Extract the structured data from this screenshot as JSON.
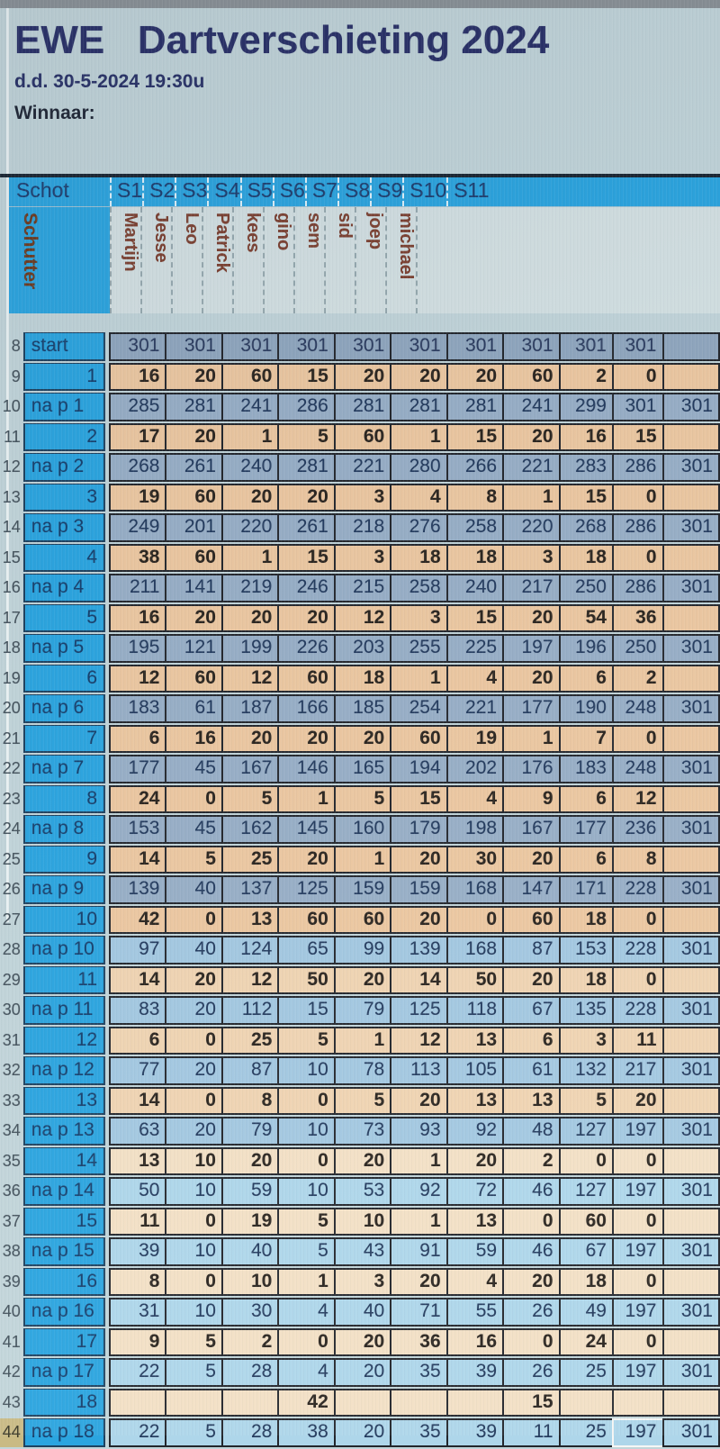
{
  "header": {
    "title": "EWE   Dartverschieting 2024",
    "date_line": "d.d. 30-5-2024 19:30u",
    "winner_label": "Winnaar:"
  },
  "colors": {
    "header_blue": "#2ba5e0",
    "score_row_peach": "#edc8a1",
    "remaining_row_blue": "#98afc7",
    "start_row_slate": "#90a7bf",
    "title_navy": "#272e66",
    "player_name_maroon": "#7d4030",
    "active_gutter_tan": "#c9ba84"
  },
  "table": {
    "corner_label": "Schot",
    "corner_sublabel": "Schutter",
    "shooter_columns": [
      "S1",
      "S2",
      "S3",
      "S4",
      "S5",
      "S6",
      "S7",
      "S8",
      "S9",
      "S10",
      "S11"
    ],
    "players": [
      "Martijn",
      "Jesse",
      "Leo",
      "Patrick",
      "kees",
      "gino",
      "sem",
      "sid",
      "joep",
      "michael",
      ""
    ],
    "selection": {
      "row_index": 36,
      "col_index": 9
    },
    "rows": [
      {
        "num": "8",
        "label": "start",
        "type": "start",
        "values": [
          301,
          301,
          301,
          301,
          301,
          301,
          301,
          301,
          301,
          301,
          ""
        ]
      },
      {
        "num": "9",
        "label": "1",
        "type": "score",
        "values": [
          16,
          20,
          60,
          15,
          20,
          20,
          20,
          60,
          2,
          0,
          ""
        ]
      },
      {
        "num": "10",
        "label": "na p 1",
        "type": "nap",
        "values": [
          285,
          281,
          241,
          286,
          281,
          281,
          281,
          241,
          299,
          301,
          "301"
        ]
      },
      {
        "num": "11",
        "label": "2",
        "type": "score",
        "values": [
          17,
          20,
          1,
          5,
          60,
          1,
          15,
          20,
          16,
          15,
          ""
        ]
      },
      {
        "num": "12",
        "label": "na p 2",
        "type": "nap",
        "values": [
          268,
          261,
          240,
          281,
          221,
          280,
          266,
          221,
          283,
          286,
          "301"
        ]
      },
      {
        "num": "13",
        "label": "3",
        "type": "score",
        "values": [
          19,
          60,
          20,
          20,
          3,
          4,
          8,
          1,
          15,
          0,
          ""
        ]
      },
      {
        "num": "14",
        "label": "na p 3",
        "type": "nap",
        "values": [
          249,
          201,
          220,
          261,
          218,
          276,
          258,
          220,
          268,
          286,
          "301"
        ]
      },
      {
        "num": "15",
        "label": "4",
        "type": "score",
        "values": [
          38,
          60,
          1,
          15,
          3,
          18,
          18,
          3,
          18,
          0,
          ""
        ]
      },
      {
        "num": "16",
        "label": "na p 4",
        "type": "nap",
        "values": [
          211,
          141,
          219,
          246,
          215,
          258,
          240,
          217,
          250,
          286,
          "301"
        ]
      },
      {
        "num": "17",
        "label": "5",
        "type": "score",
        "values": [
          16,
          20,
          20,
          20,
          12,
          3,
          15,
          20,
          54,
          36,
          ""
        ]
      },
      {
        "num": "18",
        "label": "na p 5",
        "type": "nap",
        "values": [
          195,
          121,
          199,
          226,
          203,
          255,
          225,
          197,
          196,
          250,
          "301"
        ]
      },
      {
        "num": "19",
        "label": "6",
        "type": "score",
        "values": [
          12,
          60,
          12,
          60,
          18,
          1,
          4,
          20,
          6,
          2,
          ""
        ]
      },
      {
        "num": "20",
        "label": "na p 6",
        "type": "nap",
        "values": [
          183,
          61,
          187,
          166,
          185,
          254,
          221,
          177,
          190,
          248,
          "301"
        ]
      },
      {
        "num": "21",
        "label": "7",
        "type": "score",
        "values": [
          6,
          16,
          20,
          20,
          20,
          60,
          19,
          1,
          7,
          0,
          ""
        ]
      },
      {
        "num": "22",
        "label": "na p 7",
        "type": "nap",
        "values": [
          177,
          45,
          167,
          146,
          165,
          194,
          202,
          176,
          183,
          248,
          "301"
        ]
      },
      {
        "num": "23",
        "label": "8",
        "type": "score",
        "values": [
          24,
          0,
          5,
          1,
          5,
          15,
          4,
          9,
          6,
          12,
          ""
        ]
      },
      {
        "num": "24",
        "label": "na p 8",
        "type": "nap",
        "values": [
          153,
          45,
          162,
          145,
          160,
          179,
          198,
          167,
          177,
          236,
          "301"
        ]
      },
      {
        "num": "25",
        "label": "9",
        "type": "score",
        "values": [
          14,
          5,
          25,
          20,
          1,
          20,
          30,
          20,
          6,
          8,
          ""
        ]
      },
      {
        "num": "26",
        "label": "na p 9",
        "type": "nap",
        "values": [
          139,
          40,
          137,
          125,
          159,
          159,
          168,
          147,
          171,
          228,
          "301"
        ]
      },
      {
        "num": "27",
        "label": "10",
        "type": "score",
        "values": [
          42,
          0,
          13,
          60,
          60,
          20,
          0,
          60,
          18,
          0,
          ""
        ]
      },
      {
        "num": "28",
        "label": "na p 10",
        "type": "nap",
        "values": [
          97,
          40,
          124,
          65,
          99,
          139,
          168,
          87,
          153,
          228,
          "301"
        ]
      },
      {
        "num": "29",
        "label": "11",
        "type": "score",
        "values": [
          14,
          20,
          12,
          50,
          20,
          14,
          50,
          20,
          18,
          0,
          ""
        ]
      },
      {
        "num": "30",
        "label": "na p 11",
        "type": "nap",
        "values": [
          83,
          20,
          112,
          15,
          79,
          125,
          118,
          67,
          135,
          228,
          "301"
        ]
      },
      {
        "num": "31",
        "label": "12",
        "type": "score",
        "values": [
          6,
          0,
          25,
          5,
          1,
          12,
          13,
          6,
          3,
          11,
          ""
        ]
      },
      {
        "num": "32",
        "label": "na p 12",
        "type": "nap",
        "values": [
          77,
          20,
          87,
          10,
          78,
          113,
          105,
          61,
          132,
          217,
          "301"
        ]
      },
      {
        "num": "33",
        "label": "13",
        "type": "score",
        "values": [
          14,
          0,
          8,
          0,
          5,
          20,
          13,
          13,
          5,
          20,
          ""
        ]
      },
      {
        "num": "34",
        "label": "na p 13",
        "type": "nap",
        "values": [
          63,
          20,
          79,
          10,
          73,
          93,
          92,
          48,
          127,
          197,
          "301"
        ]
      },
      {
        "num": "35",
        "label": "14",
        "type": "score",
        "values": [
          13,
          10,
          20,
          0,
          20,
          1,
          20,
          2,
          0,
          0,
          ""
        ]
      },
      {
        "num": "36",
        "label": "na p 14",
        "type": "nap",
        "values": [
          50,
          10,
          59,
          10,
          53,
          92,
          72,
          46,
          127,
          197,
          "301"
        ]
      },
      {
        "num": "37",
        "label": "15",
        "type": "score",
        "values": [
          11,
          0,
          19,
          5,
          10,
          1,
          13,
          0,
          60,
          0,
          ""
        ]
      },
      {
        "num": "38",
        "label": "na p 15",
        "type": "nap",
        "values": [
          39,
          10,
          40,
          5,
          43,
          91,
          59,
          46,
          67,
          197,
          "301"
        ]
      },
      {
        "num": "39",
        "label": "16",
        "type": "score",
        "values": [
          8,
          0,
          10,
          1,
          3,
          20,
          4,
          20,
          18,
          0,
          ""
        ]
      },
      {
        "num": "40",
        "label": "na p 16",
        "type": "nap",
        "values": [
          31,
          10,
          30,
          4,
          40,
          71,
          55,
          26,
          49,
          197,
          "301"
        ]
      },
      {
        "num": "41",
        "label": "17",
        "type": "score",
        "values": [
          9,
          5,
          2,
          0,
          20,
          36,
          16,
          0,
          24,
          0,
          ""
        ]
      },
      {
        "num": "42",
        "label": "na p 17",
        "type": "nap",
        "values": [
          22,
          5,
          28,
          4,
          20,
          35,
          39,
          26,
          25,
          197,
          "301"
        ]
      },
      {
        "num": "43",
        "label": "18",
        "type": "score",
        "values": [
          "",
          "",
          "",
          42,
          "",
          "",
          "",
          15,
          "",
          "",
          ""
        ]
      },
      {
        "num": "44",
        "label": "na p 18",
        "type": "nap",
        "values": [
          22,
          5,
          28,
          38,
          20,
          35,
          39,
          11,
          25,
          197,
          "301"
        ]
      }
    ]
  }
}
